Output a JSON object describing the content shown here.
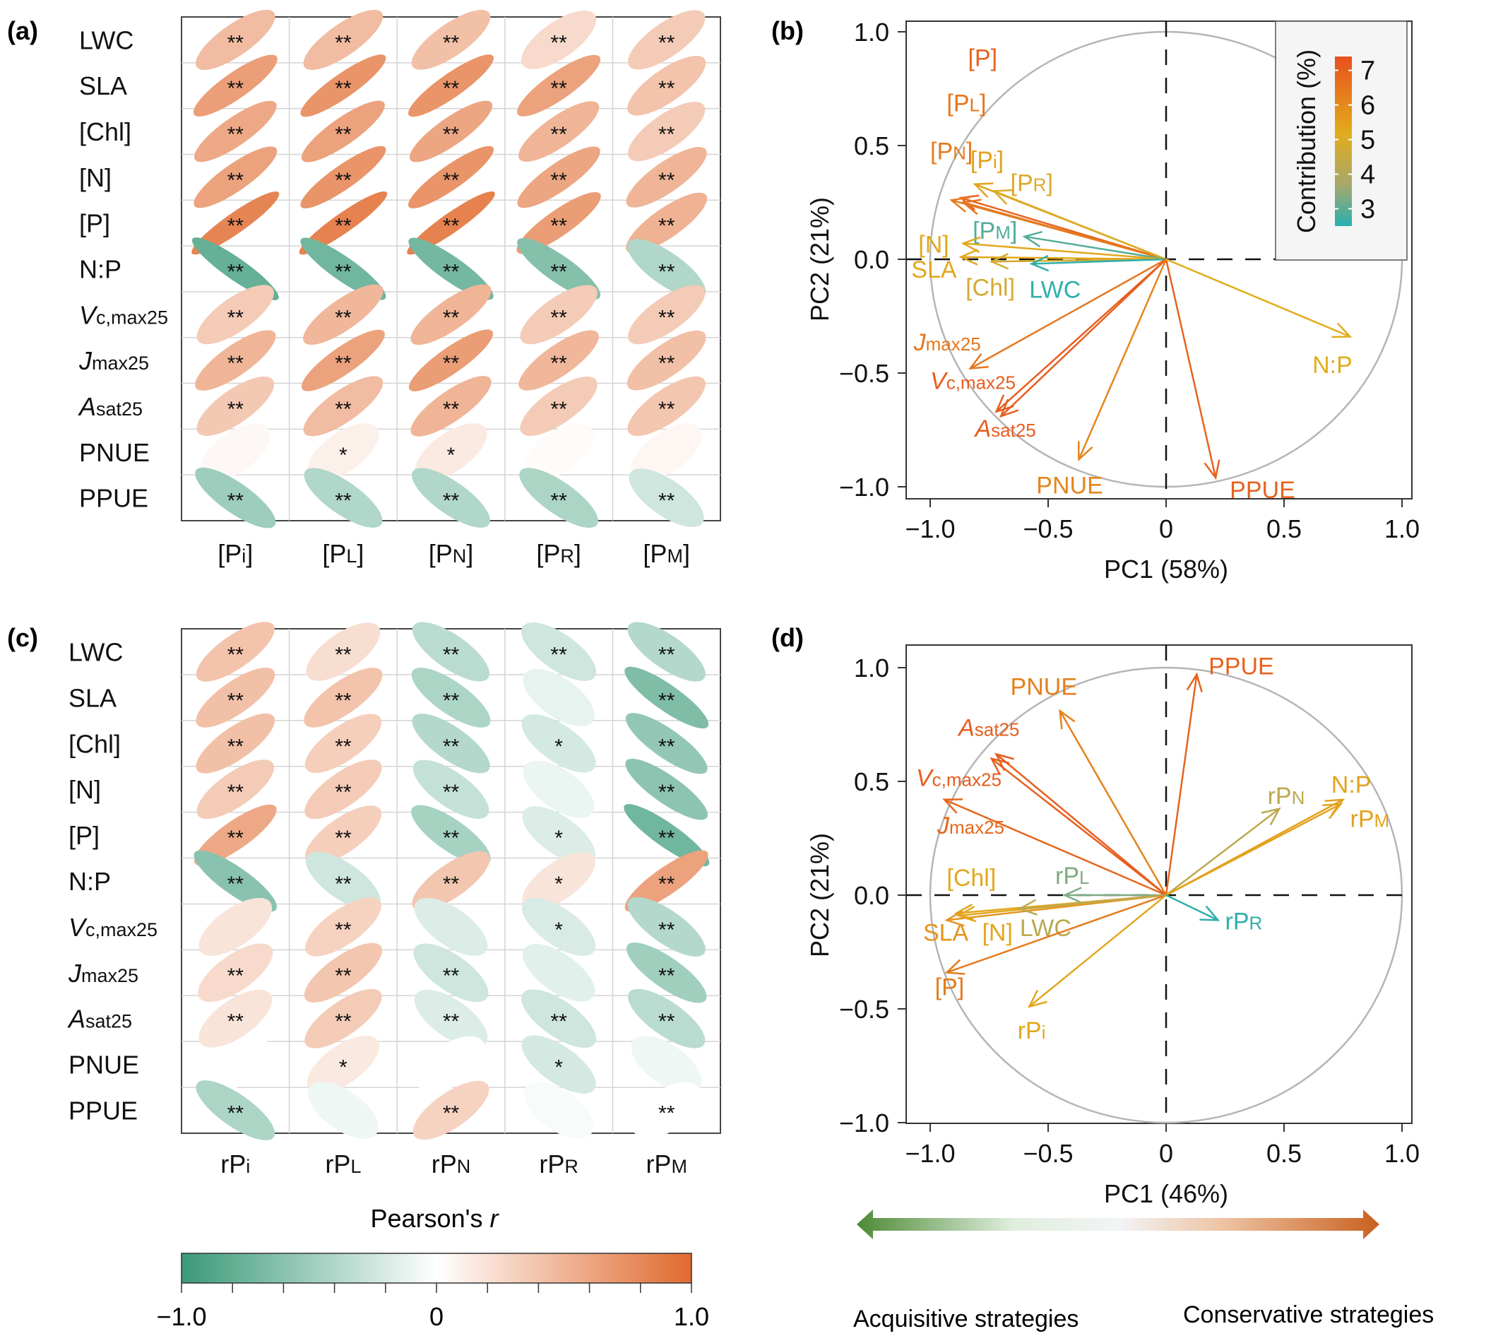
{
  "chart_data": [
    {
      "panel": "(a)",
      "type": "heatmap",
      "title": "",
      "rows": [
        "LWC",
        "SLA",
        "[Chl]",
        "[N]",
        "[P]",
        "N:P",
        "Vc,max25",
        "Jmax25",
        "Asat25",
        "PNUE",
        "PPUE"
      ],
      "row_labels": [
        {
          "main": "LWC",
          "sub": "",
          "italic": false
        },
        {
          "main": "SLA",
          "sub": "",
          "italic": false
        },
        {
          "main": "[Chl]",
          "sub": "",
          "italic": false
        },
        {
          "main": "[N]",
          "sub": "",
          "italic": false
        },
        {
          "main": "[P]",
          "sub": "",
          "italic": false
        },
        {
          "main": "N:P",
          "sub": "",
          "italic": false
        },
        {
          "main": "V",
          "sub": "c,max25",
          "italic": true
        },
        {
          "main": "J",
          "sub": "max25",
          "italic": true
        },
        {
          "main": "A",
          "sub": "sat25",
          "italic": true
        },
        {
          "main": "PNUE",
          "sub": "",
          "italic": false
        },
        {
          "main": "PPUE",
          "sub": "",
          "italic": false
        }
      ],
      "col_labels": [
        {
          "pre": "[P",
          "sub": "i",
          "post": "]"
        },
        {
          "pre": "[P",
          "sub": "L",
          "post": "]"
        },
        {
          "pre": "[P",
          "sub": "N",
          "post": "]"
        },
        {
          "pre": "[P",
          "sub": "R",
          "post": "]"
        },
        {
          "pre": "[P",
          "sub": "M",
          "post": "]"
        }
      ],
      "values": [
        [
          0.45,
          0.45,
          0.42,
          0.25,
          0.35
        ],
        [
          0.65,
          0.72,
          0.72,
          0.62,
          0.4
        ],
        [
          0.58,
          0.62,
          0.6,
          0.5,
          0.35
        ],
        [
          0.62,
          0.72,
          0.72,
          0.6,
          0.5
        ],
        [
          0.82,
          0.84,
          0.84,
          0.66,
          0.52
        ],
        [
          -0.78,
          -0.72,
          -0.7,
          -0.62,
          -0.4
        ],
        [
          0.35,
          0.48,
          0.5,
          0.35,
          0.35
        ],
        [
          0.5,
          0.62,
          0.66,
          0.48,
          0.42
        ],
        [
          0.36,
          0.45,
          0.5,
          0.35,
          0.38
        ],
        [
          0.05,
          0.1,
          0.14,
          0.03,
          0.06
        ],
        [
          -0.5,
          -0.4,
          -0.4,
          -0.42,
          -0.25
        ]
      ],
      "signif": [
        [
          "**",
          "**",
          "**",
          "**",
          "**"
        ],
        [
          "**",
          "**",
          "**",
          "**",
          "**"
        ],
        [
          "**",
          "**",
          "**",
          "**",
          "**"
        ],
        [
          "**",
          "**",
          "**",
          "**",
          "**"
        ],
        [
          "**",
          "**",
          "**",
          "**",
          "**"
        ],
        [
          "**",
          "**",
          "**",
          "**",
          "**"
        ],
        [
          "**",
          "**",
          "**",
          "**",
          "**"
        ],
        [
          "**",
          "**",
          "**",
          "**",
          "**"
        ],
        [
          "**",
          "**",
          "**",
          "**",
          "**"
        ],
        [
          "",
          "*",
          "*",
          "",
          ""
        ],
        [
          "**",
          "**",
          "**",
          "**",
          "**"
        ]
      ],
      "color_range": [
        -1.0,
        1.0
      ]
    },
    {
      "panel": "(b)",
      "type": "scatter",
      "subtype": "pca-biplot",
      "xlabel": "PC1 (58%)",
      "ylabel": "PC2 (21%)",
      "xlim": [
        -1.1,
        1.1
      ],
      "ylim": [
        -1.1,
        1.1
      ],
      "xticks": [
        -1.0,
        -0.5,
        0,
        0.5,
        1.0
      ],
      "xtick_labels": [
        "−1.0",
        "−0.5",
        "0",
        "0.5",
        "1.0"
      ],
      "yticks": [
        -1.0,
        -0.5,
        0.0,
        0.5,
        1.0
      ],
      "ytick_labels": [
        "−1.0",
        "−0.5",
        "0.0",
        "0.5",
        "1.0"
      ],
      "legend": {
        "title": "Contribution (%)",
        "position": "top-right",
        "ticks": [
          3,
          4,
          5,
          6,
          7
        ],
        "range": [
          2.5,
          7.4
        ]
      },
      "vectors": [
        {
          "name": "[P]",
          "main": "[P",
          "sub": "",
          "post": "]",
          "italic": false,
          "x": -0.87,
          "y": 0.27,
          "contrib": 7.0,
          "lx": -0.84,
          "ly": 0.85
        },
        {
          "name": "[PL]",
          "main": "[P",
          "sub": "L",
          "post": "]",
          "italic": false,
          "x": -0.86,
          "y": 0.25,
          "contrib": 6.6,
          "lx": -0.93,
          "ly": 0.65
        },
        {
          "name": "[PN]",
          "main": "[P",
          "sub": "N",
          "post": "]",
          "italic": false,
          "x": -0.91,
          "y": 0.26,
          "contrib": 6.5,
          "lx": -1.0,
          "ly": 0.44
        },
        {
          "name": "[Pi]",
          "main": "[P",
          "sub": "i",
          "post": "]",
          "italic": false,
          "x": -0.81,
          "y": 0.33,
          "contrib": 5.7,
          "lx": -0.83,
          "ly": 0.4
        },
        {
          "name": "[PR]",
          "main": "[P",
          "sub": "R",
          "post": "]",
          "italic": false,
          "x": -0.73,
          "y": 0.3,
          "contrib": 5.3,
          "lx": -0.66,
          "ly": 0.3
        },
        {
          "name": "[PM]",
          "main": "[P",
          "sub": "M",
          "post": "]",
          "italic": false,
          "x": -0.6,
          "y": 0.1,
          "contrib": 3.0,
          "lx": -0.82,
          "ly": 0.09
        },
        {
          "name": "[N]",
          "main": "[N",
          "sub": "",
          "post": "]",
          "italic": false,
          "x": -0.86,
          "y": 0.07,
          "contrib": 5.6,
          "lx": -1.05,
          "ly": 0.03
        },
        {
          "name": "SLA",
          "main": "SLA",
          "sub": "",
          "post": "",
          "italic": false,
          "x": -0.87,
          "y": 0.01,
          "contrib": 5.6,
          "lx": -1.08,
          "ly": -0.08
        },
        {
          "name": "[Chl]",
          "main": "[Chl",
          "sub": "",
          "post": "]",
          "italic": false,
          "x": -0.74,
          "y": -0.01,
          "contrib": 5.1,
          "lx": -0.85,
          "ly": -0.16
        },
        {
          "name": "LWC",
          "main": "LWC",
          "sub": "",
          "post": "",
          "italic": false,
          "x": -0.57,
          "y": -0.02,
          "contrib": 2.6,
          "lx": -0.58,
          "ly": -0.17
        },
        {
          "name": "Jmax25",
          "main": "J",
          "sub": "max25",
          "post": "",
          "italic": true,
          "x": -0.83,
          "y": -0.48,
          "contrib": 6.6,
          "lx": -1.07,
          "ly": -0.4
        },
        {
          "name": "Vc,max25",
          "main": "V",
          "sub": "c,max25",
          "post": "",
          "italic": true,
          "x": -0.72,
          "y": -0.67,
          "contrib": 7.1,
          "lx": -1.0,
          "ly": -0.57
        },
        {
          "name": "Asat25",
          "main": "A",
          "sub": "sat25",
          "post": "",
          "italic": true,
          "x": -0.7,
          "y": -0.69,
          "contrib": 7.1,
          "lx": -0.81,
          "ly": -0.78
        },
        {
          "name": "PNUE",
          "main": "PNUE",
          "sub": "",
          "post": "",
          "italic": false,
          "x": -0.37,
          "y": -0.88,
          "contrib": 6.3,
          "lx": -0.55,
          "ly": -1.03
        },
        {
          "name": "PPUE",
          "main": "PPUE",
          "sub": "",
          "post": "",
          "italic": false,
          "x": 0.21,
          "y": -0.96,
          "contrib": 7.0,
          "lx": 0.27,
          "ly": -1.05
        },
        {
          "name": "N:P",
          "main": "N:P",
          "sub": "",
          "post": "",
          "italic": false,
          "x": 0.78,
          "y": -0.34,
          "contrib": 5.5,
          "lx": 0.62,
          "ly": -0.5
        }
      ]
    },
    {
      "panel": "(c)",
      "type": "heatmap",
      "title": "",
      "rows": [
        "LWC",
        "SLA",
        "[Chl]",
        "[N]",
        "[P]",
        "N:P",
        "Vc,max25",
        "Jmax25",
        "Asat25",
        "PNUE",
        "PPUE"
      ],
      "row_labels": [
        {
          "main": "LWC",
          "sub": "",
          "italic": false
        },
        {
          "main": "SLA",
          "sub": "",
          "italic": false
        },
        {
          "main": "[Chl]",
          "sub": "",
          "italic": false
        },
        {
          "main": "[N]",
          "sub": "",
          "italic": false
        },
        {
          "main": "[P]",
          "sub": "",
          "italic": false
        },
        {
          "main": "N:P",
          "sub": "",
          "italic": false
        },
        {
          "main": "V",
          "sub": "c,max25",
          "italic": true
        },
        {
          "main": "J",
          "sub": "max25",
          "italic": true
        },
        {
          "main": "A",
          "sub": "sat25",
          "italic": true
        },
        {
          "main": "PNUE",
          "sub": "",
          "italic": false
        },
        {
          "main": "PPUE",
          "sub": "",
          "italic": false
        }
      ],
      "col_labels": [
        {
          "pre": "rP",
          "sub": "i",
          "post": ""
        },
        {
          "pre": "rP",
          "sub": "L",
          "post": ""
        },
        {
          "pre": "rP",
          "sub": "N",
          "post": ""
        },
        {
          "pre": "rP",
          "sub": "R",
          "post": ""
        },
        {
          "pre": "rP",
          "sub": "M",
          "post": ""
        }
      ],
      "values": [
        [
          0.4,
          0.22,
          -0.35,
          -0.25,
          -0.38
        ],
        [
          0.42,
          0.4,
          -0.42,
          -0.12,
          -0.65
        ],
        [
          0.42,
          0.32,
          -0.38,
          -0.22,
          -0.55
        ],
        [
          0.35,
          0.35,
          -0.3,
          -0.1,
          -0.58
        ],
        [
          0.58,
          0.32,
          -0.45,
          -0.18,
          -0.72
        ],
        [
          -0.6,
          -0.25,
          0.38,
          0.18,
          0.62
        ],
        [
          0.18,
          0.3,
          -0.18,
          -0.2,
          -0.38
        ],
        [
          0.25,
          0.38,
          -0.25,
          -0.15,
          -0.48
        ],
        [
          0.18,
          0.35,
          -0.18,
          -0.25,
          -0.35
        ],
        [
          0.0,
          0.15,
          0.0,
          -0.22,
          -0.08
        ],
        [
          -0.42,
          -0.08,
          0.3,
          -0.04,
          0.0
        ]
      ],
      "signif": [
        [
          "**",
          "**",
          "**",
          "**",
          "**"
        ],
        [
          "**",
          "**",
          "**",
          "",
          "**"
        ],
        [
          "**",
          "**",
          "**",
          "*",
          "**"
        ],
        [
          "**",
          "**",
          "**",
          "",
          "**"
        ],
        [
          "**",
          "**",
          "**",
          "*",
          "**"
        ],
        [
          "**",
          "**",
          "**",
          "*",
          "**"
        ],
        [
          "",
          "**",
          "",
          "*",
          "**"
        ],
        [
          "**",
          "**",
          "**",
          "",
          "**"
        ],
        [
          "**",
          "**",
          "**",
          "**",
          "**"
        ],
        [
          "",
          "*",
          "",
          "*",
          ""
        ],
        [
          "**",
          "",
          "**",
          "",
          "**"
        ]
      ],
      "color_range": [
        -1.0,
        1.0
      ]
    },
    {
      "panel": "(d)",
      "type": "scatter",
      "subtype": "pca-biplot",
      "xlabel": "PC1 (46%)",
      "ylabel": "PC2 (21%)",
      "xlim": [
        -1.1,
        1.1
      ],
      "ylim": [
        -1.1,
        1.1
      ],
      "xticks": [
        -1.0,
        -0.5,
        0,
        0.5,
        1.0
      ],
      "xtick_labels": [
        "−1.0",
        "−0.5",
        "0",
        "0.5",
        "1.0"
      ],
      "yticks": [
        -1.0,
        -0.5,
        0.0,
        0.5,
        1.0
      ],
      "ytick_labels": [
        "−1.0",
        "−0.5",
        "0.0",
        "0.5",
        "1.0"
      ],
      "vectors": [
        {
          "name": "PPUE",
          "main": "PPUE",
          "sub": "",
          "post": "",
          "italic": false,
          "x": 0.13,
          "y": 0.97,
          "contrib": 7.0,
          "lx": 0.18,
          "ly": 0.97
        },
        {
          "name": "PNUE",
          "main": "PNUE",
          "sub": "",
          "post": "",
          "italic": false,
          "x": -0.45,
          "y": 0.81,
          "contrib": 6.4,
          "lx": -0.66,
          "ly": 0.88
        },
        {
          "name": "Asat25",
          "main": "A",
          "sub": "sat25",
          "post": "",
          "italic": true,
          "x": -0.72,
          "y": 0.62,
          "contrib": 7.1,
          "lx": -0.88,
          "ly": 0.7
        },
        {
          "name": "Vc,max25",
          "main": "V",
          "sub": "c,max25",
          "post": "",
          "italic": true,
          "x": -0.74,
          "y": 0.6,
          "contrib": 7.1,
          "lx": -1.06,
          "ly": 0.48
        },
        {
          "name": "Jmax25",
          "main": "J",
          "sub": "max25",
          "post": "",
          "italic": true,
          "x": -0.94,
          "y": 0.42,
          "contrib": 6.9,
          "lx": -0.97,
          "ly": 0.27
        },
        {
          "name": "rPN",
          "main": "rP",
          "sub": "N",
          "post": "",
          "italic": false,
          "x": 0.48,
          "y": 0.38,
          "contrib": 4.5,
          "lx": 0.43,
          "ly": 0.4
        },
        {
          "name": "N:P",
          "main": "N:P",
          "sub": "",
          "post": "",
          "italic": false,
          "x": 0.75,
          "y": 0.42,
          "contrib": 5.7,
          "lx": 0.7,
          "ly": 0.45
        },
        {
          "name": "rPM",
          "main": "rP",
          "sub": "M",
          "post": "",
          "italic": false,
          "x": 0.74,
          "y": 0.4,
          "contrib": 5.7,
          "lx": 0.78,
          "ly": 0.3
        },
        {
          "name": "rPL",
          "main": "rP",
          "sub": "L",
          "post": "",
          "italic": false,
          "x": -0.43,
          "y": 0.0,
          "contrib": 3.5,
          "lx": -0.47,
          "ly": 0.05
        },
        {
          "name": "[Chl]",
          "main": "[Chl",
          "sub": "",
          "post": "]",
          "italic": false,
          "x": -0.89,
          "y": -0.08,
          "contrib": 5.6,
          "lx": -0.93,
          "ly": 0.04
        },
        {
          "name": "SLA",
          "main": "SLA",
          "sub": "",
          "post": "",
          "italic": false,
          "x": -0.93,
          "y": -0.11,
          "contrib": 6.0,
          "lx": -1.03,
          "ly": -0.2
        },
        {
          "name": "[N]",
          "main": "[N",
          "sub": "",
          "post": "]",
          "italic": false,
          "x": -0.88,
          "y": -0.09,
          "contrib": 5.6,
          "lx": -0.78,
          "ly": -0.2
        },
        {
          "name": "LWC",
          "main": "LWC",
          "sub": "",
          "post": "",
          "italic": false,
          "x": -0.62,
          "y": -0.06,
          "contrib": 4.5,
          "lx": -0.62,
          "ly": -0.18
        },
        {
          "name": "[P]",
          "main": "[P",
          "sub": "",
          "post": "]",
          "italic": false,
          "x": -0.93,
          "y": -0.34,
          "contrib": 6.5,
          "lx": -0.98,
          "ly": -0.44
        },
        {
          "name": "rPi",
          "main": "rP",
          "sub": "i",
          "post": "",
          "italic": false,
          "x": -0.58,
          "y": -0.49,
          "contrib": 5.6,
          "lx": -0.63,
          "ly": -0.63
        },
        {
          "name": "rPR",
          "main": "rP",
          "sub": "R",
          "post": "",
          "italic": false,
          "x": 0.22,
          "y": -0.11,
          "contrib": 2.6,
          "lx": 0.25,
          "ly": -0.15
        }
      ]
    }
  ],
  "colorbar": {
    "title_main": "Pearson's ",
    "title_italic": "r",
    "tick_labels": [
      "−1.0",
      "0",
      "1.0"
    ],
    "range": [
      -1.0,
      1.0
    ],
    "colors": {
      "negative": "#3a9a78",
      "zero": "#ffffff",
      "positive": "#e06a2e"
    }
  },
  "strategy_arrow": {
    "left_label": "Acquisitive strategies",
    "right_label": "Conservative strategies",
    "colors": {
      "left": "#4e8a36",
      "mid": "#f2f4f6",
      "right": "#c9601f"
    }
  },
  "panel_labels": [
    "(a)",
    "(b)",
    "(c)",
    "(d)"
  ],
  "contribution_colors": {
    "low": "#28b0b0",
    "mid": "#e2ac1c",
    "high": "#e84f1e"
  }
}
